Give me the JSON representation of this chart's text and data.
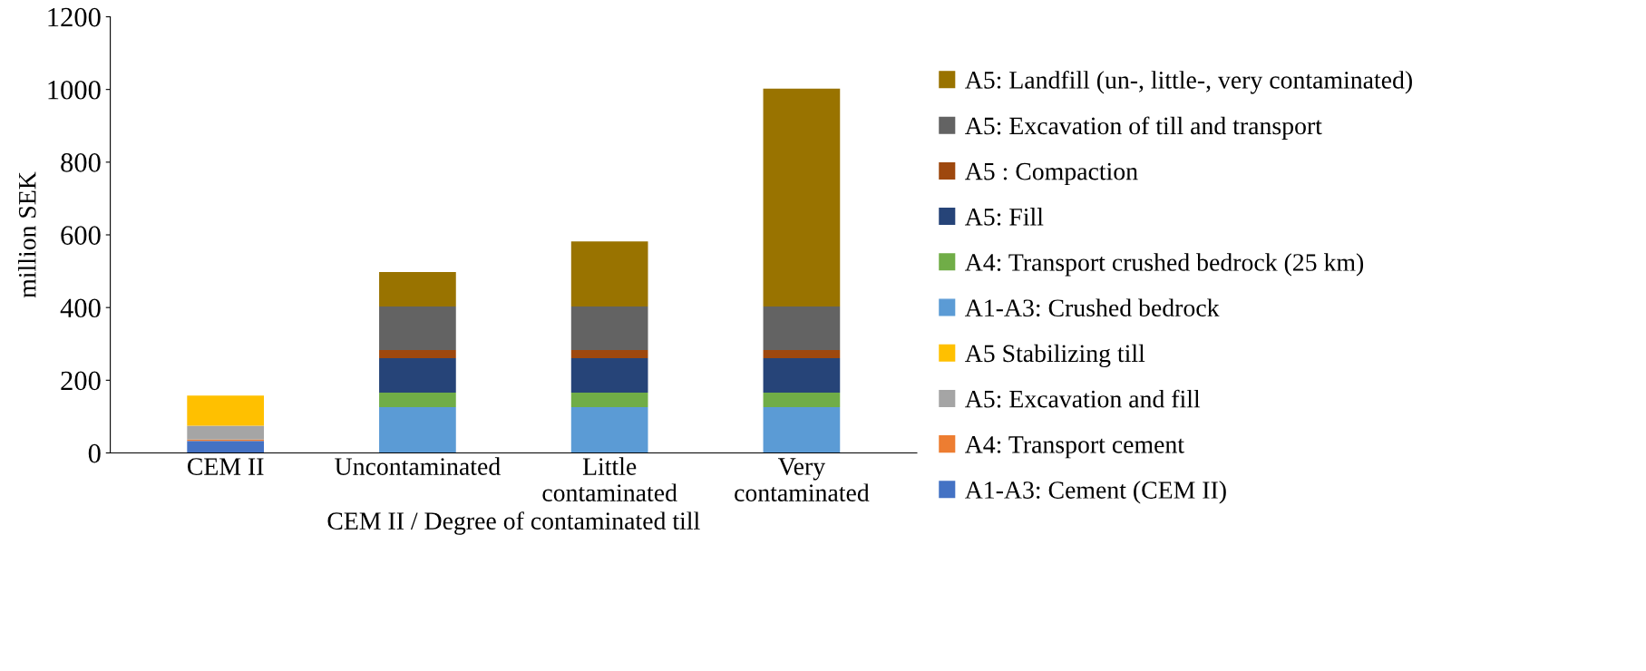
{
  "chart_data": {
    "type": "bar",
    "stacked": true,
    "xlabel": "CEM II / Degree of contaminated till",
    "ylabel": "million SEK",
    "categories": [
      "CEM II",
      "Uncontaminated",
      "Little\ncontaminated",
      "Very\ncontaminated"
    ],
    "ylim": [
      0,
      1200
    ],
    "yticks": [
      0,
      200,
      400,
      600,
      800,
      1000,
      1200
    ],
    "grid": false,
    "legend": "right",
    "series": [
      {
        "name": "A1-A3: Cement (CEM II)",
        "color": "#4472c4",
        "values": [
          33,
          null,
          null,
          null
        ]
      },
      {
        "name": "A4: Transport cement",
        "color": "#ed7d31",
        "values": [
          4,
          null,
          null,
          null
        ]
      },
      {
        "name": "A5: Excavation and fill",
        "color": "#a5a5a5",
        "values": [
          38,
          null,
          null,
          null
        ]
      },
      {
        "name": "A5 Stabilizing till",
        "color": "#ffc000",
        "values": [
          83,
          null,
          null,
          null
        ]
      },
      {
        "name": "A1-A3: Crushed bedrock",
        "color": "#5b9bd5",
        "values": [
          null,
          126,
          126,
          126
        ]
      },
      {
        "name": "A4: Transport crushed bedrock (25 km)",
        "color": "#70ad47",
        "values": [
          null,
          40,
          40,
          40
        ]
      },
      {
        "name": "A5: Fill",
        "color": "#264478",
        "values": [
          null,
          95,
          95,
          95
        ]
      },
      {
        "name": "A5 : Compaction",
        "color": "#9e480e",
        "values": [
          null,
          22,
          22,
          22
        ]
      },
      {
        "name": "A5: Excavation of till and transport",
        "color": "#636363",
        "values": [
          null,
          120,
          120,
          120
        ]
      },
      {
        "name": "A5: Landfill (un-, little-, very contaminated)",
        "color": "#997300",
        "values": [
          null,
          95,
          179,
          599
        ]
      }
    ]
  }
}
